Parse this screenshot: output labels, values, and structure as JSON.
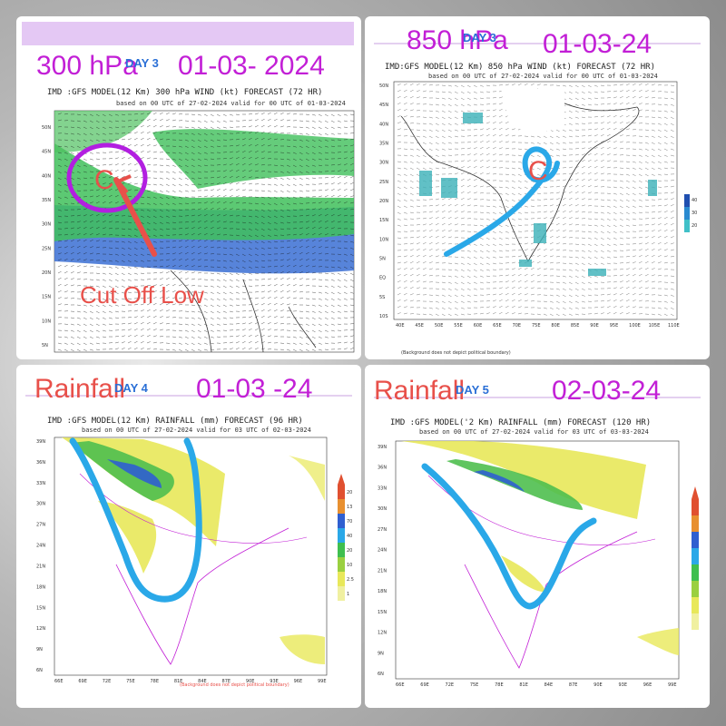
{
  "panels": [
    {
      "caption_left": "300 hPa",
      "caption_right": "01-03- 2024",
      "day": "DAY 3",
      "title": "IMD :GFS MODEL(12 Km) 300 hPa WIND (kt) FORECAST (72 HR)",
      "subtitle": "based on 00 UTC of 27-02-2024 valid for 00 UTC of 01-03-2024",
      "annotation": "Cut Off Low",
      "marker": "C",
      "lat_ticks": [
        "50N",
        "45N",
        "40N",
        "35N",
        "30N",
        "25N",
        "20N",
        "15N",
        "10N",
        "5N"
      ]
    },
    {
      "caption_left": "850 hPa",
      "caption_right": "01-03-24",
      "day": "DAY 3",
      "title": "IMD:GFS MODEL(12 Km) 850 hPa WIND (kt) FORECAST (72 HR)",
      "subtitle": "based on 00 UTC of 27-02-2024 valid for 00 UTC of 01-03-2024",
      "marker": "C",
      "lat_ticks": [
        "50N",
        "45N",
        "40N",
        "35N",
        "30N",
        "25N",
        "20N",
        "15N",
        "10N",
        "5N",
        "EQ",
        "5S",
        "10S"
      ],
      "lon_ticks": [
        "40E",
        "45E",
        "50E",
        "55E",
        "60E",
        "65E",
        "70E",
        "75E",
        "80E",
        "85E",
        "90E",
        "95E",
        "100E",
        "105E",
        "110E"
      ],
      "legend": [
        "40",
        "30",
        "20"
      ],
      "footer": "(Background does not depict political boundary)"
    },
    {
      "caption_left": "Rainfall",
      "caption_right": "01-03 -24",
      "day": "DAY 4",
      "title": "IMD :GFS MODEL(12 Km) RAINFALL (mm) FORECAST (96 HR)",
      "subtitle": "based on 00 UTC of 27-02-2024 valid for 03 UTC of 02-03-2024",
      "lat_ticks": [
        "39N",
        "36N",
        "33N",
        "30N",
        "27N",
        "24N",
        "21N",
        "18N",
        "15N",
        "12N",
        "9N",
        "6N"
      ],
      "lon_ticks": [
        "66E",
        "69E",
        "72E",
        "75E",
        "78E",
        "81E",
        "84E",
        "87E",
        "90E",
        "93E",
        "96E",
        "99E"
      ],
      "legend": [
        "20",
        "13",
        "70",
        "40",
        "20",
        "10",
        "2.5",
        "1"
      ],
      "footer": "(Background does not depict political boundary)"
    },
    {
      "caption_left": "Rainfall",
      "caption_right": "02-03-24",
      "day": "DAY 5",
      "title": "IMD :GFS MODEL('2 Km) RAINFALL (mm) FORECAST (120 HR)",
      "subtitle": "based on 00 UTC of 27-02-2024 valid for 03 UTC of 03-03-2024",
      "lat_ticks": [
        "39N",
        "36N",
        "33N",
        "30N",
        "27N",
        "24N",
        "21N",
        "18N",
        "15N",
        "12N",
        "9N",
        "6N"
      ],
      "lon_ticks": [
        "66E",
        "69E",
        "72E",
        "75E",
        "78E",
        "81E",
        "84E",
        "87E",
        "90E",
        "93E",
        "96E",
        "99E"
      ]
    }
  ],
  "colors": {
    "caption_magenta": "#c21fd6",
    "caption_red": "#e8504a",
    "jet_green": "#3fbf5a",
    "jet_blue": "#2255c8",
    "rain_yellow": "#e8e85a",
    "rain_green": "#4fbf4f",
    "rain_blue": "#2f5fd0",
    "trough_cyan": "#2aa8e8",
    "circle_purple": "#b21fe0"
  }
}
